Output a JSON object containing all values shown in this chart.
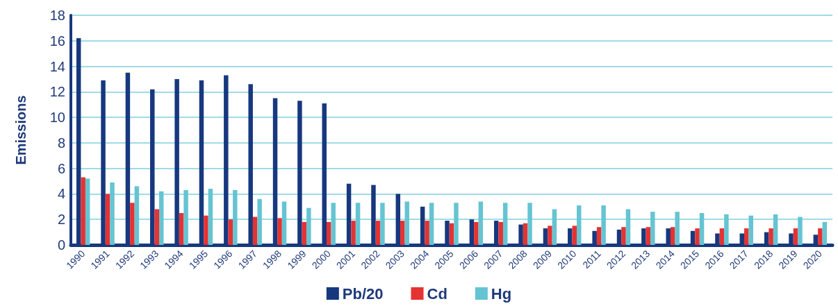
{
  "chart_data": {
    "type": "bar",
    "ylabel": "Emissions",
    "categories": [
      "1990",
      "1991",
      "1992",
      "1993",
      "1994",
      "1995",
      "1996",
      "1997",
      "1998",
      "1999",
      "2000",
      "2001",
      "2002",
      "2003",
      "2004",
      "2005",
      "2006",
      "2007",
      "2008",
      "2009",
      "2010",
      "2011",
      "2012",
      "2013",
      "2014",
      "2015",
      "2016",
      "2017",
      "2018",
      "2019",
      "2020"
    ],
    "series": [
      {
        "name": "Pb/20",
        "color": "#17387e",
        "values": [
          16.2,
          12.9,
          13.5,
          12.2,
          13.0,
          12.9,
          13.3,
          12.6,
          11.5,
          11.3,
          11.1,
          4.8,
          4.7,
          4.0,
          3.0,
          1.9,
          2.0,
          1.9,
          1.6,
          1.3,
          1.3,
          1.1,
          1.2,
          1.3,
          1.3,
          1.1,
          0.9,
          0.9,
          1.0,
          0.9,
          0.8
        ]
      },
      {
        "name": "Cd",
        "color": "#e53232",
        "values": [
          5.3,
          4.0,
          3.3,
          2.8,
          2.5,
          2.3,
          2.0,
          2.2,
          2.1,
          1.8,
          1.8,
          1.9,
          1.9,
          1.9,
          1.9,
          1.7,
          1.8,
          1.8,
          1.7,
          1.5,
          1.5,
          1.4,
          1.4,
          1.4,
          1.4,
          1.3,
          1.3,
          1.3,
          1.3,
          1.3,
          1.3
        ]
      },
      {
        "name": "Hg",
        "color": "#65c4d2",
        "values": [
          5.2,
          4.9,
          4.6,
          4.2,
          4.3,
          4.4,
          4.3,
          3.6,
          3.4,
          2.9,
          3.3,
          3.3,
          3.3,
          3.4,
          3.3,
          3.3,
          3.4,
          3.3,
          3.3,
          2.8,
          3.1,
          3.1,
          2.8,
          2.6,
          2.6,
          2.5,
          2.4,
          2.3,
          2.4,
          2.2,
          1.8
        ]
      }
    ],
    "ylim": [
      0,
      18
    ],
    "yticks": [
      0,
      2,
      4,
      6,
      8,
      10,
      12,
      14,
      16,
      18
    ],
    "grid": "y",
    "legend": "bottom"
  }
}
